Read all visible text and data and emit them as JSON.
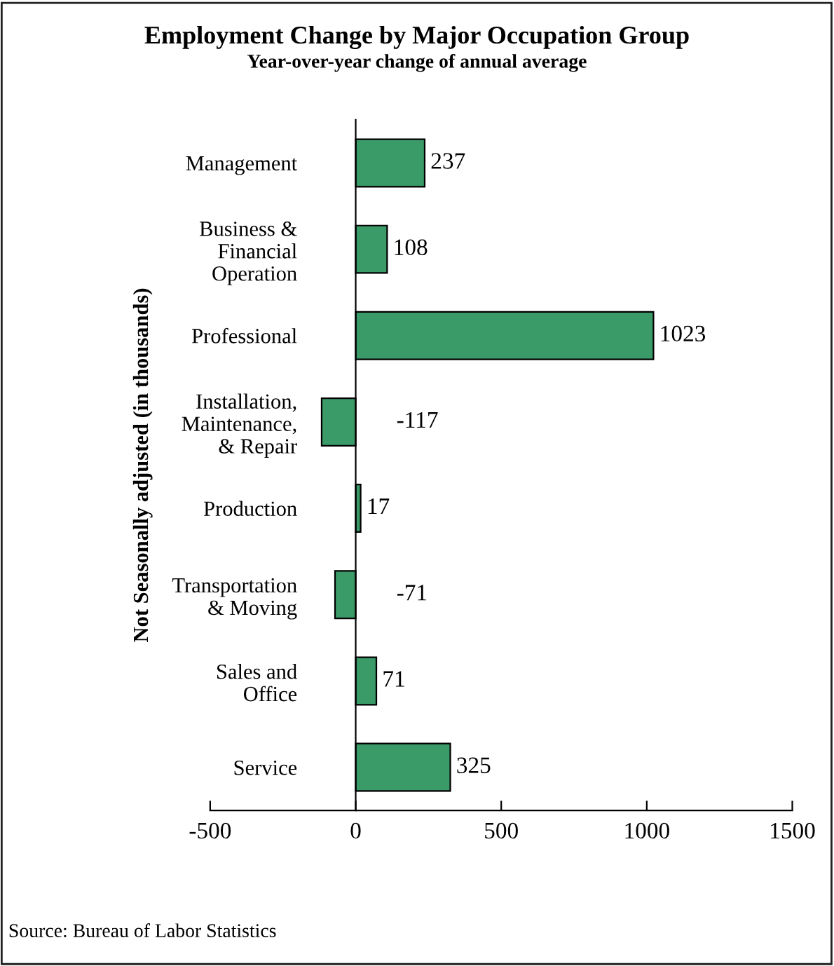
{
  "chart_data": {
    "type": "bar",
    "orientation": "horizontal",
    "title": "Employment Change by Major Occupation Group",
    "subtitle": "Year-over-year change of annual average",
    "ylabel": "Not Seasonally adjusted (in thousands)",
    "categories": [
      "Management",
      "Business &\nFinancial\nOperation",
      "Professional",
      "Installation,\nMaintenance,\n& Repair",
      "Production",
      "Transportation\n& Moving",
      "Sales and\nOffice",
      "Service"
    ],
    "values": [
      237,
      108,
      1023,
      -117,
      17,
      -71,
      71,
      325
    ],
    "color": "#3a9a68",
    "xlim": [
      -500,
      1500
    ],
    "xticks": [
      -500,
      0,
      500,
      1000,
      1500
    ],
    "data_labels": true,
    "annotations": [
      "Source: Bureau of Labor Statistics"
    ]
  }
}
